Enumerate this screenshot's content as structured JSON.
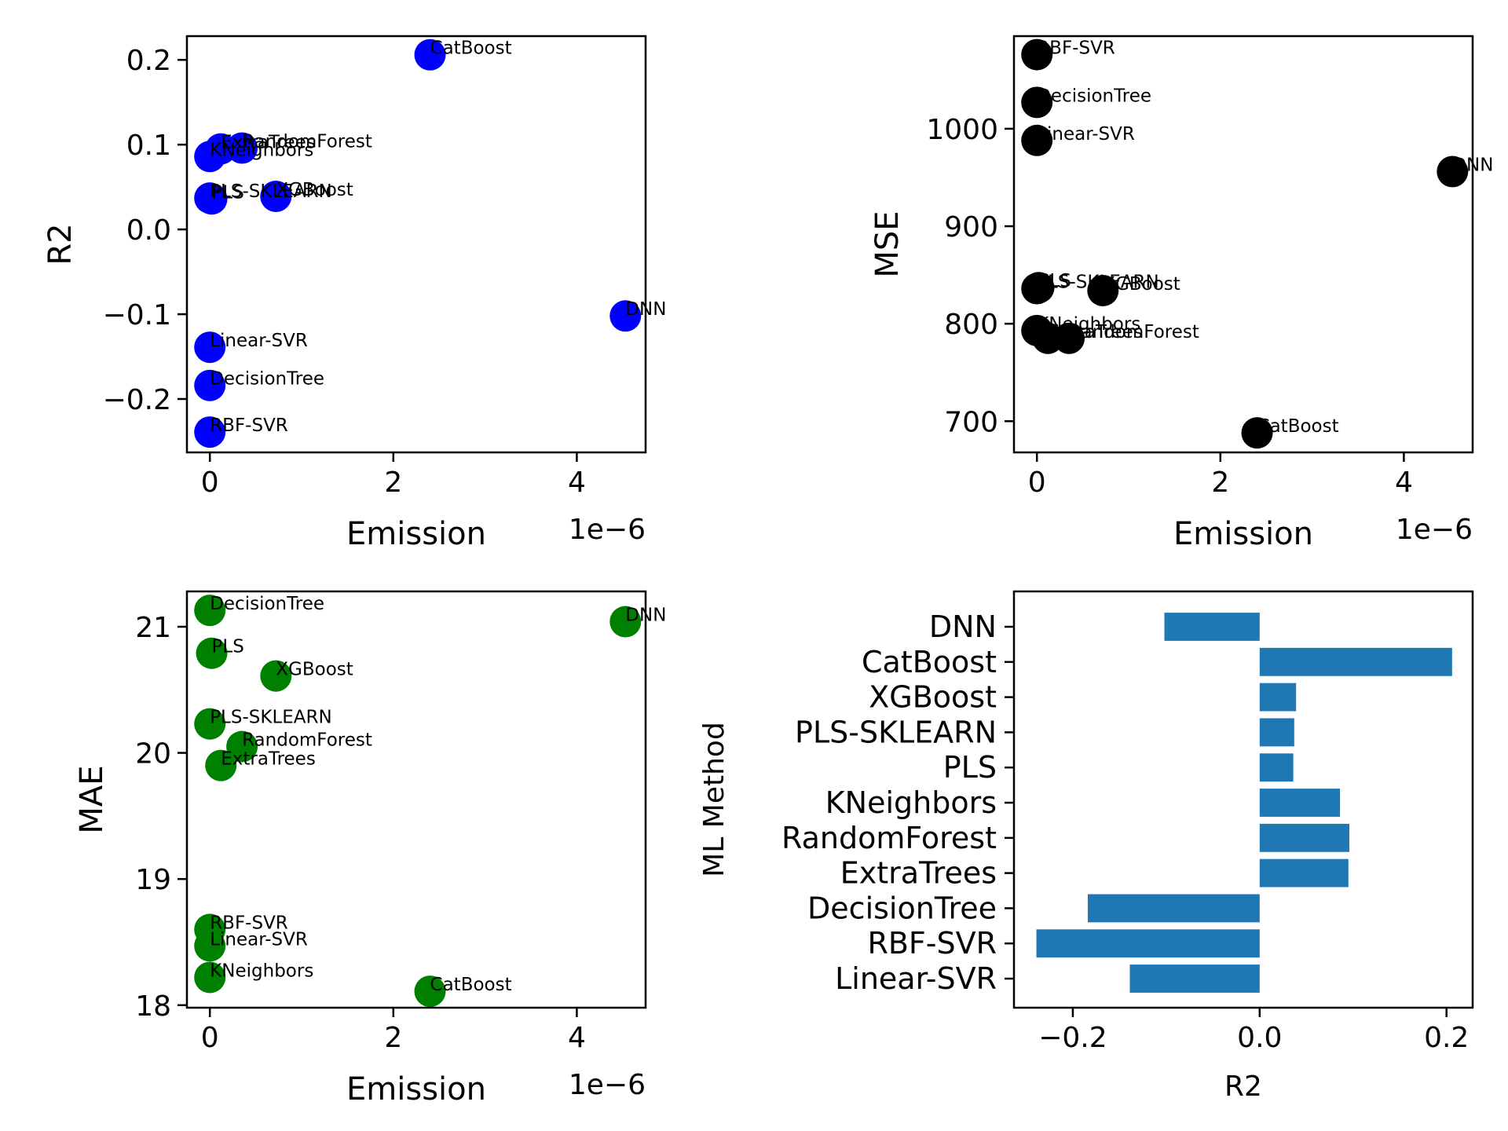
{
  "colors": {
    "r2_points": "#0000ff",
    "mse_points": "#000000",
    "mae_points": "#008000",
    "bars": "#1f77b4"
  },
  "chart_data": [
    {
      "type": "scatter",
      "xlabel": "Emission",
      "ylabel": "R2",
      "x_offset_label": "1e−6",
      "xlim": [
        -2.5e-07,
        4.75e-06
      ],
      "ylim": [
        -0.263,
        0.228
      ],
      "xticks": [
        0,
        2e-06,
        4e-06
      ],
      "xtick_labels": [
        "0",
        "2",
        "4"
      ],
      "yticks": [
        -0.2,
        -0.1,
        0.0,
        0.1,
        0.2
      ],
      "ytick_labels": [
        "−0.2",
        "−0.1",
        "0.0",
        "0.1",
        "0.2"
      ],
      "points": [
        {
          "label": "CatBoost",
          "x": 2.4e-06,
          "y": 0.206
        },
        {
          "label": "ExtraTrees",
          "x": 1.2e-07,
          "y": 0.095
        },
        {
          "label": "RandomForest",
          "x": 3.5e-07,
          "y": 0.096
        },
        {
          "label": "KNeighbors",
          "x": 0.0,
          "y": 0.086
        },
        {
          "label": "PLS",
          "x": 2e-08,
          "y": 0.036
        },
        {
          "label": "PLS-SKLEARN",
          "x": 0.0,
          "y": 0.037
        },
        {
          "label": "XGBoost",
          "x": 7.2e-07,
          "y": 0.039
        },
        {
          "label": "DNN",
          "x": 4.53e-06,
          "y": -0.102
        },
        {
          "label": "Linear-SVR",
          "x": 0.0,
          "y": -0.139
        },
        {
          "label": "DecisionTree",
          "x": 0.0,
          "y": -0.184
        },
        {
          "label": "RBF-SVR",
          "x": 0.0,
          "y": -0.239
        }
      ]
    },
    {
      "type": "scatter",
      "xlabel": "Emission",
      "ylabel": "MSE",
      "x_offset_label": "1e−6",
      "xlim": [
        -2.5e-07,
        4.75e-06
      ],
      "ylim": [
        668,
        1095
      ],
      "xticks": [
        0,
        2e-06,
        4e-06
      ],
      "xtick_labels": [
        "0",
        "2",
        "4"
      ],
      "yticks": [
        700,
        800,
        900,
        1000
      ],
      "ytick_labels": [
        "700",
        "800",
        "900",
        "1000"
      ],
      "points": [
        {
          "label": "RBF-SVR",
          "x": 0.0,
          "y": 1076
        },
        {
          "label": "DecisionTree",
          "x": 0.0,
          "y": 1027
        },
        {
          "label": "Linear-SVR",
          "x": 0.0,
          "y": 988
        },
        {
          "label": "DNN",
          "x": 4.53e-06,
          "y": 956
        },
        {
          "label": "PLS",
          "x": 2e-08,
          "y": 837
        },
        {
          "label": "PLS-SKLEARN",
          "x": 0.0,
          "y": 836
        },
        {
          "label": "XGBoost",
          "x": 7.2e-07,
          "y": 834
        },
        {
          "label": "KNeighbors",
          "x": 0.0,
          "y": 793
        },
        {
          "label": "ExtraTrees",
          "x": 1.2e-07,
          "y": 785
        },
        {
          "label": "RandomForest",
          "x": 3.5e-07,
          "y": 785
        },
        {
          "label": "CatBoost",
          "x": 2.4e-06,
          "y": 688
        }
      ]
    },
    {
      "type": "scatter",
      "xlabel": "Emission",
      "ylabel": "MAE",
      "x_offset_label": "1e−6",
      "xlim": [
        -2.5e-07,
        4.75e-06
      ],
      "ylim": [
        17.98,
        21.28
      ],
      "xticks": [
        0,
        2e-06,
        4e-06
      ],
      "xtick_labels": [
        "0",
        "2",
        "4"
      ],
      "yticks": [
        18,
        19,
        20,
        21
      ],
      "ytick_labels": [
        "18",
        "19",
        "20",
        "21"
      ],
      "points": [
        {
          "label": "DecisionTree",
          "x": 0.0,
          "y": 21.13
        },
        {
          "label": "DNN",
          "x": 4.53e-06,
          "y": 21.04
        },
        {
          "label": "PLS",
          "x": 2e-08,
          "y": 20.79
        },
        {
          "label": "XGBoost",
          "x": 7.2e-07,
          "y": 20.61
        },
        {
          "label": "PLS-SKLEARN",
          "x": 0.0,
          "y": 20.23
        },
        {
          "label": "RandomForest",
          "x": 3.5e-07,
          "y": 20.05
        },
        {
          "label": "ExtraTrees",
          "x": 1.2e-07,
          "y": 19.9
        },
        {
          "label": "RBF-SVR",
          "x": 0.0,
          "y": 18.6
        },
        {
          "label": "Linear-SVR",
          "x": 0.0,
          "y": 18.47
        },
        {
          "label": "KNeighbors",
          "x": 0.0,
          "y": 18.22
        },
        {
          "label": "CatBoost",
          "x": 2.4e-06,
          "y": 18.11
        }
      ]
    },
    {
      "type": "bar",
      "orientation": "horizontal",
      "xlabel": "R2",
      "ylabel": "ML Method",
      "xlim": [
        -0.263,
        0.228
      ],
      "xticks": [
        -0.2,
        0.0,
        0.2
      ],
      "xtick_labels": [
        "−0.2",
        "0.0",
        "0.2"
      ],
      "categories": [
        "DNN",
        "CatBoost",
        "XGBoost",
        "PLS-SKLEARN",
        "PLS",
        "KNeighbors",
        "RandomForest",
        "ExtraTrees",
        "DecisionTree",
        "RBF-SVR",
        "Linear-SVR"
      ],
      "values": [
        -0.102,
        0.206,
        0.039,
        0.037,
        0.036,
        0.086,
        0.096,
        0.095,
        -0.184,
        -0.239,
        -0.139
      ]
    }
  ]
}
